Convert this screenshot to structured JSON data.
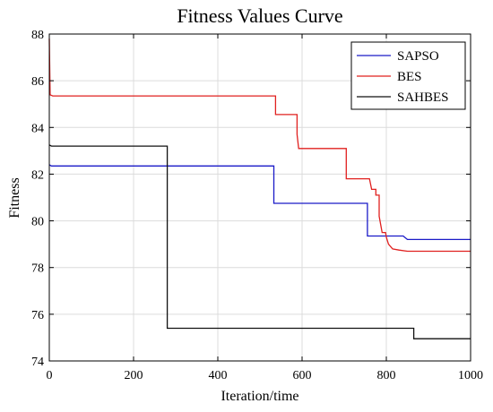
{
  "chart_data": {
    "type": "line",
    "title": "Fitness Values Curve",
    "xlabel": "Iteration/time",
    "ylabel": "Fitness",
    "xlim": [
      0,
      1000
    ],
    "ylim": [
      74,
      88
    ],
    "xticks": [
      0,
      200,
      400,
      600,
      800,
      1000
    ],
    "yticks": [
      74,
      76,
      78,
      80,
      82,
      84,
      86,
      88
    ],
    "grid": true,
    "legend_position": "top-right",
    "series": [
      {
        "name": "SAPSO",
        "color": "#1a1ac8",
        "step": true,
        "points": [
          [
            0,
            82.4
          ],
          [
            5,
            82.35
          ],
          [
            533,
            82.35
          ],
          [
            533,
            80.75
          ],
          [
            755,
            80.75
          ],
          [
            755,
            79.35
          ],
          [
            840,
            79.35
          ],
          [
            850,
            79.2
          ],
          [
            1000,
            79.2
          ]
        ]
      },
      {
        "name": "BES",
        "color": "#e0201f",
        "step": true,
        "points": [
          [
            0,
            87.8
          ],
          [
            2,
            85.4
          ],
          [
            8,
            85.35
          ],
          [
            537,
            85.35
          ],
          [
            537,
            84.55
          ],
          [
            588,
            84.55
          ],
          [
            588,
            83.7
          ],
          [
            592,
            83.1
          ],
          [
            705,
            83.1
          ],
          [
            705,
            81.8
          ],
          [
            760,
            81.8
          ],
          [
            765,
            81.35
          ],
          [
            775,
            81.35
          ],
          [
            775,
            81.1
          ],
          [
            783,
            81.1
          ],
          [
            783,
            80.2
          ],
          [
            790,
            79.5
          ],
          [
            798,
            79.5
          ],
          [
            800,
            79.3
          ],
          [
            805,
            79.0
          ],
          [
            815,
            78.8
          ],
          [
            830,
            78.75
          ],
          [
            850,
            78.7
          ],
          [
            1000,
            78.7
          ]
        ]
      },
      {
        "name": "SAHBES",
        "color": "#111111",
        "step": true,
        "points": [
          [
            0,
            83.25
          ],
          [
            5,
            83.2
          ],
          [
            280,
            83.2
          ],
          [
            280,
            75.4
          ],
          [
            865,
            75.4
          ],
          [
            865,
            74.95
          ],
          [
            1000,
            74.95
          ]
        ]
      }
    ]
  }
}
